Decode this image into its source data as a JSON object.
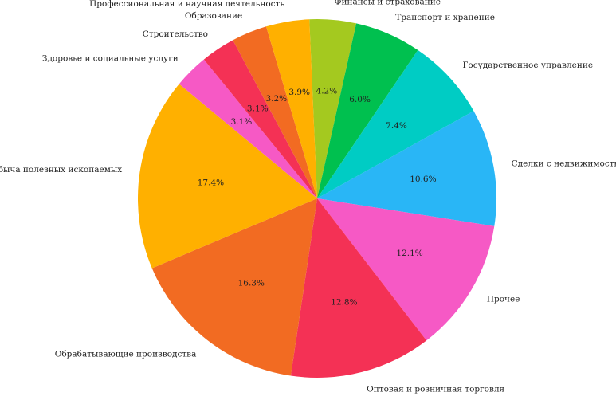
{
  "chart_data": {
    "type": "pie",
    "categories": [
      "Финансы и страхование",
      "Транспорт и хранение",
      "Государственное управление",
      "Сделки с недвижимостью",
      "Прочее",
      "Оптовая и розничная торговля",
      "Обрабатывающие производства",
      "Добыча полезных ископаемых",
      "Здоровье и социальные услуги",
      "Строительство",
      "Образование",
      "Профессиональная и научная деятельность"
    ],
    "values": [
      4.2,
      6.0,
      7.4,
      10.6,
      12.1,
      12.8,
      16.3,
      17.4,
      3.1,
      3.1,
      3.2,
      3.9
    ],
    "value_labels": [
      "4.2%",
      "6.0%",
      "7.4%",
      "10.6%",
      "12.1%",
      "12.8%",
      "16.3%",
      "17.4%",
      "3.1%",
      "3.1%",
      "3.2%",
      "3.9%"
    ],
    "colors": [
      "#a4c91f",
      "#00c04f",
      "#00ccc4",
      "#29b6f6",
      "#f659c5",
      "#f43155",
      "#f26b22",
      "#ffb000",
      "#f659c5",
      "#f43155",
      "#f26b22",
      "#ffb000"
    ]
  }
}
